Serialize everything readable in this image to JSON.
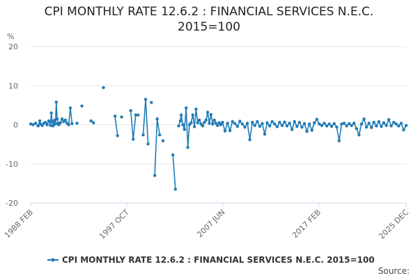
{
  "title_line1": "CPI MONTHLY RATE 12.6.2 : FINANCIAL SERVICES N.E.C.",
  "title_line2": "2015=100",
  "source": "Source:",
  "colors": {
    "series": "#1f7bb6",
    "grid": "#e6e6e6",
    "axis": "#ccd6eb"
  },
  "chart_data": {
    "type": "line",
    "title": "CPI MONTHLY RATE 12.6.2 : FINANCIAL SERVICES N.E.C. 2015=100",
    "ylabel": "%",
    "xlabel": "",
    "ylim": [
      -20,
      20
    ],
    "yticks": [
      20,
      10,
      0,
      -10,
      -20
    ],
    "xlim": [
      "1988-02",
      "2025-12"
    ],
    "xtick_labels": [
      "1988 FEB",
      "1997 OCT",
      "2007 JUN",
      "2017 FEB",
      "2025 DEC"
    ],
    "grid": "horizontal",
    "legend": "bottom-center",
    "series": [
      {
        "name": "CPI MONTHLY RATE 12.6.2 : FINANCIAL SERVICES N.E.C. 2015=100",
        "points": [
          [
            "1988-02",
            0.2
          ],
          [
            "1988-05",
            0.0
          ],
          [
            "1988-08",
            0.4
          ],
          [
            "1988-11",
            -0.3
          ],
          [
            "1989-01",
            1.0
          ],
          [
            "1989-02",
            0.2
          ],
          [
            "1989-04",
            -0.2
          ],
          [
            "1989-06",
            0.4
          ],
          [
            "1989-08",
            0.6
          ],
          [
            "1989-10",
            0.0
          ],
          [
            "1989-12",
            1.0
          ],
          [
            "1990-02",
            -0.2
          ],
          [
            "1990-03",
            3.0
          ],
          [
            "1990-04",
            0.8
          ],
          [
            "1990-05",
            -0.3
          ],
          [
            "1990-07",
            1.2
          ],
          [
            "1990-08",
            0.2
          ],
          [
            "1990-09",
            5.8
          ],
          [
            "1990-10",
            1.5
          ],
          [
            "1990-11",
            0.4
          ],
          [
            "1990-12",
            0.0
          ],
          [
            "1991-02",
            0.5
          ],
          [
            "1991-04",
            1.5
          ],
          [
            "1991-06",
            0.8
          ],
          [
            "1991-08",
            1.2
          ],
          [
            "1991-10",
            0.4
          ],
          [
            "1991-12",
            0.0
          ],
          [
            "1992-02",
            4.3
          ],
          [
            "1992-04",
            0.3
          ],
          [
            "1992-10",
            0.4
          ],
          [
            "1993-04",
            4.8
          ],
          [
            "1994-03",
            1.0
          ],
          [
            "1994-06",
            0.5
          ],
          [
            "1995-06",
            9.5
          ],
          [
            "1996-08",
            2.2
          ],
          [
            "1996-11",
            -2.8
          ],
          [
            "1997-04",
            2.0
          ],
          [
            "1998-03",
            3.6
          ],
          [
            "1998-06",
            -3.7
          ],
          [
            "1998-09",
            2.5
          ],
          [
            "1998-12",
            2.5
          ],
          [
            "1999-06",
            -2.6
          ],
          [
            "1999-09",
            6.5
          ],
          [
            "1999-12",
            -4.9
          ],
          [
            "2000-04",
            5.7
          ],
          [
            "2000-08",
            -13.0
          ],
          [
            "2000-11",
            1.5
          ],
          [
            "2001-02",
            -2.6
          ],
          [
            "2001-06",
            -4.1
          ],
          [
            "2002-06",
            -7.7
          ],
          [
            "2002-09",
            -16.5
          ],
          [
            "2003-01",
            -0.3
          ],
          [
            "2003-03",
            1.0
          ],
          [
            "2003-04",
            2.5
          ],
          [
            "2003-06",
            0.0
          ],
          [
            "2003-08",
            -1.2
          ],
          [
            "2003-10",
            4.3
          ],
          [
            "2003-12",
            -5.8
          ],
          [
            "2004-02",
            0.0
          ],
          [
            "2004-04",
            0.5
          ],
          [
            "2004-06",
            2.5
          ],
          [
            "2004-08",
            -0.5
          ],
          [
            "2004-10",
            4.0
          ],
          [
            "2004-12",
            0.5
          ],
          [
            "2005-02",
            1.2
          ],
          [
            "2005-04",
            0.2
          ],
          [
            "2005-06",
            -0.3
          ],
          [
            "2005-08",
            0.6
          ],
          [
            "2005-10",
            1.2
          ],
          [
            "2005-12",
            3.2
          ],
          [
            "2006-02",
            0.4
          ],
          [
            "2006-04",
            2.6
          ],
          [
            "2006-06",
            0.2
          ],
          [
            "2006-08",
            1.2
          ],
          [
            "2006-10",
            0.4
          ],
          [
            "2006-12",
            -0.2
          ],
          [
            "2007-02",
            0.5
          ],
          [
            "2007-04",
            0.0
          ],
          [
            "2007-06",
            0.6
          ],
          [
            "2007-09",
            -1.6
          ],
          [
            "2007-12",
            0.4
          ],
          [
            "2008-03",
            -1.5
          ],
          [
            "2008-06",
            0.8
          ],
          [
            "2008-09",
            0.3
          ],
          [
            "2008-12",
            -0.4
          ],
          [
            "2009-03",
            0.9
          ],
          [
            "2009-06",
            0.2
          ],
          [
            "2009-09",
            -0.6
          ],
          [
            "2009-12",
            0.4
          ],
          [
            "2010-03",
            -3.8
          ],
          [
            "2010-06",
            0.6
          ],
          [
            "2010-09",
            -0.2
          ],
          [
            "2010-12",
            0.8
          ],
          [
            "2011-03",
            -0.4
          ],
          [
            "2011-06",
            0.3
          ],
          [
            "2011-09",
            -2.4
          ],
          [
            "2011-12",
            0.5
          ],
          [
            "2012-03",
            -0.3
          ],
          [
            "2012-06",
            0.8
          ],
          [
            "2012-09",
            0.2
          ],
          [
            "2012-12",
            -0.5
          ],
          [
            "2013-03",
            0.6
          ],
          [
            "2013-06",
            -0.2
          ],
          [
            "2013-09",
            0.7
          ],
          [
            "2013-12",
            -0.3
          ],
          [
            "2014-03",
            0.4
          ],
          [
            "2014-06",
            -1.2
          ],
          [
            "2014-09",
            0.8
          ],
          [
            "2014-12",
            -0.4
          ],
          [
            "2015-03",
            0.6
          ],
          [
            "2015-06",
            -0.6
          ],
          [
            "2015-09",
            0.3
          ],
          [
            "2015-12",
            -1.7
          ],
          [
            "2016-03",
            0.2
          ],
          [
            "2016-06",
            -1.4
          ],
          [
            "2016-09",
            0.5
          ],
          [
            "2016-12",
            1.4
          ],
          [
            "2017-03",
            0.2
          ],
          [
            "2017-06",
            -0.2
          ],
          [
            "2017-09",
            0.4
          ],
          [
            "2017-12",
            -0.3
          ],
          [
            "2018-03",
            0.2
          ],
          [
            "2018-06",
            -0.4
          ],
          [
            "2018-09",
            0.3
          ],
          [
            "2018-12",
            -0.6
          ],
          [
            "2019-03",
            -4.1
          ],
          [
            "2019-06",
            0.2
          ],
          [
            "2019-09",
            0.4
          ],
          [
            "2019-12",
            -0.3
          ],
          [
            "2020-03",
            0.3
          ],
          [
            "2020-06",
            -0.2
          ],
          [
            "2020-09",
            0.4
          ],
          [
            "2020-12",
            -1.0
          ],
          [
            "2021-03",
            -2.6
          ],
          [
            "2021-06",
            0.2
          ],
          [
            "2021-09",
            1.5
          ],
          [
            "2021-12",
            -0.6
          ],
          [
            "2022-03",
            0.4
          ],
          [
            "2022-06",
            -0.7
          ],
          [
            "2022-09",
            0.6
          ],
          [
            "2022-12",
            -0.3
          ],
          [
            "2023-03",
            0.8
          ],
          [
            "2023-06",
            -0.4
          ],
          [
            "2023-09",
            0.5
          ],
          [
            "2023-12",
            -0.2
          ],
          [
            "2024-03",
            1.3
          ],
          [
            "2024-06",
            -0.3
          ],
          [
            "2024-09",
            0.6
          ],
          [
            "2024-12",
            0.2
          ],
          [
            "2025-03",
            -0.3
          ],
          [
            "2025-06",
            0.4
          ],
          [
            "2025-09",
            -1.3
          ],
          [
            "2025-12",
            -0.2
          ]
        ]
      }
    ]
  }
}
